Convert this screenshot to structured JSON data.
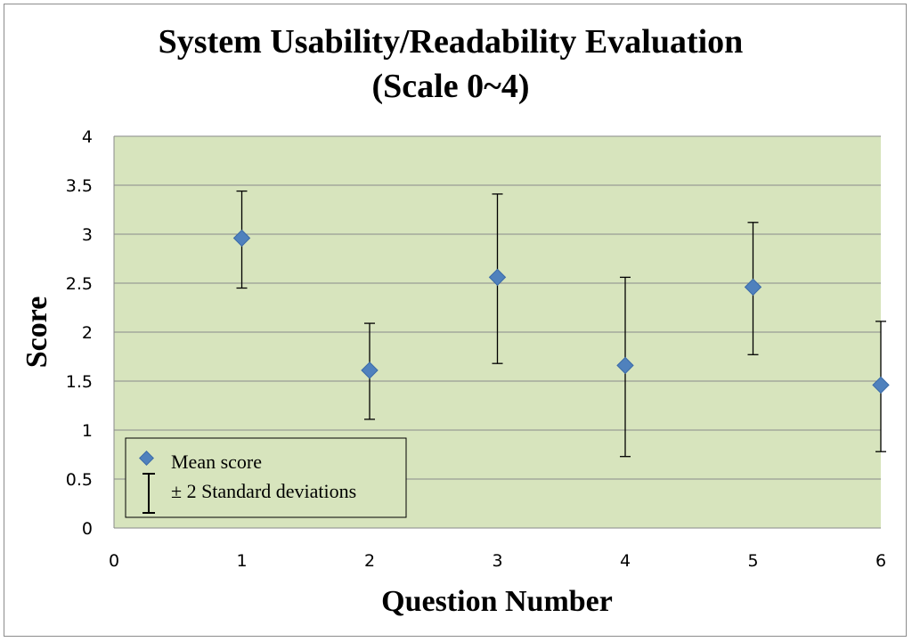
{
  "chart_data": {
    "type": "scatter",
    "title": [
      "System Usability/Readability Evaluation",
      "(Scale 0~4)"
    ],
    "xlabel": "Question Number",
    "ylabel": "Score",
    "xlim": [
      0,
      6
    ],
    "ylim": [
      0,
      4
    ],
    "xticks": [
      "0",
      "1",
      "2",
      "3",
      "4",
      "5",
      "6"
    ],
    "yticks": [
      "0",
      "0.5",
      "1",
      "1.5",
      "2",
      "2.5",
      "3",
      "3.5",
      "4"
    ],
    "grid": true,
    "legend_position": "bottom-left",
    "plot_background": "#d7e4bd",
    "marker_color": "#4f81bd",
    "series": [
      {
        "name": "Mean score",
        "x": [
          1,
          2,
          3,
          4,
          5,
          6
        ],
        "y": [
          2.96,
          1.61,
          2.56,
          1.66,
          2.46,
          1.46
        ],
        "err_low": [
          2.45,
          1.11,
          1.68,
          0.73,
          1.77,
          0.78
        ],
        "err_high": [
          3.44,
          2.09,
          3.41,
          2.56,
          3.12,
          2.11
        ]
      }
    ],
    "legend": {
      "marker_label": "Mean score",
      "errorbar_label": "± 2 Standard deviations"
    }
  }
}
